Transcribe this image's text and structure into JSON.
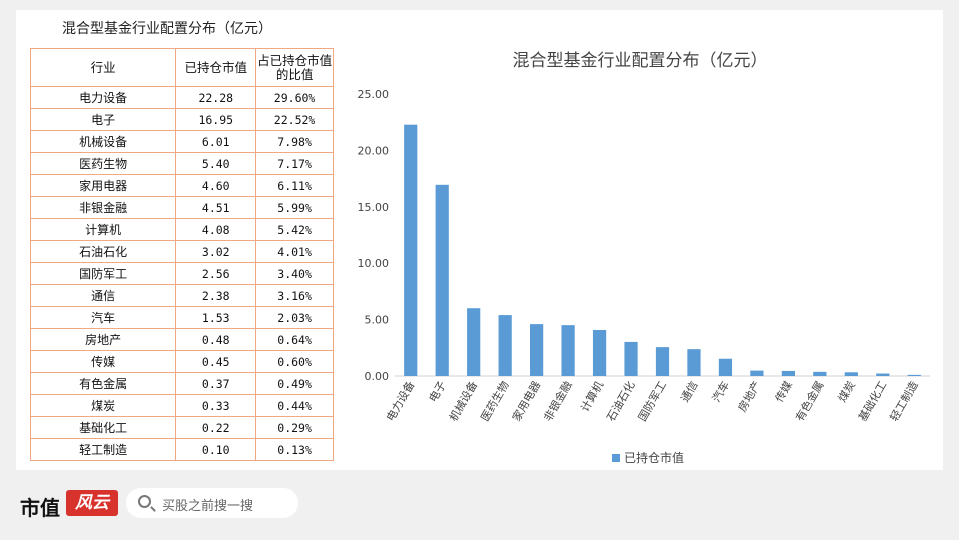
{
  "table": {
    "title": "混合型基金行业配置分布（亿元）",
    "headers": [
      "行业",
      "已持仓市值",
      "占已持仓市值的比值"
    ],
    "rows": [
      [
        "电力设备",
        "22.28",
        "29.60%"
      ],
      [
        "电子",
        "16.95",
        "22.52%"
      ],
      [
        "机械设备",
        "6.01",
        "7.98%"
      ],
      [
        "医药生物",
        "5.40",
        "7.17%"
      ],
      [
        "家用电器",
        "4.60",
        "6.11%"
      ],
      [
        "非银金融",
        "4.51",
        "5.99%"
      ],
      [
        "计算机",
        "4.08",
        "5.42%"
      ],
      [
        "石油石化",
        "3.02",
        "4.01%"
      ],
      [
        "国防军工",
        "2.56",
        "3.40%"
      ],
      [
        "通信",
        "2.38",
        "3.16%"
      ],
      [
        "汽车",
        "1.53",
        "2.03%"
      ],
      [
        "房地产",
        "0.48",
        "0.64%"
      ],
      [
        "传媒",
        "0.45",
        "0.60%"
      ],
      [
        "有色金属",
        "0.37",
        "0.49%"
      ],
      [
        "煤炭",
        "0.33",
        "0.44%"
      ],
      [
        "基础化工",
        "0.22",
        "0.29%"
      ],
      [
        "轻工制造",
        "0.10",
        "0.13%"
      ]
    ]
  },
  "chart_data": {
    "type": "bar",
    "title": "混合型基金行业配置分布（亿元）",
    "categories": [
      "电力设备",
      "电子",
      "机械设备",
      "医药生物",
      "家用电器",
      "非银金融",
      "计算机",
      "石油石化",
      "国防军工",
      "通信",
      "汽车",
      "房地产",
      "传媒",
      "有色金属",
      "煤炭",
      "基础化工",
      "轻工制造"
    ],
    "series": [
      {
        "name": "已持仓市值",
        "values": [
          22.28,
          16.95,
          6.01,
          5.4,
          4.6,
          4.51,
          4.08,
          3.02,
          2.56,
          2.38,
          1.53,
          0.48,
          0.45,
          0.37,
          0.33,
          0.22,
          0.1
        ]
      }
    ],
    "yticks": [
      "0.00",
      "5.00",
      "10.00",
      "15.00",
      "20.00",
      "25.00"
    ],
    "ylim": [
      0,
      25
    ],
    "grid": false,
    "legend_position": "bottom",
    "bar_color": "#5b9bd5"
  },
  "footer": {
    "logo_text_1": "市值",
    "logo_text_2": "风云",
    "search_placeholder": "买股之前搜一搜"
  }
}
